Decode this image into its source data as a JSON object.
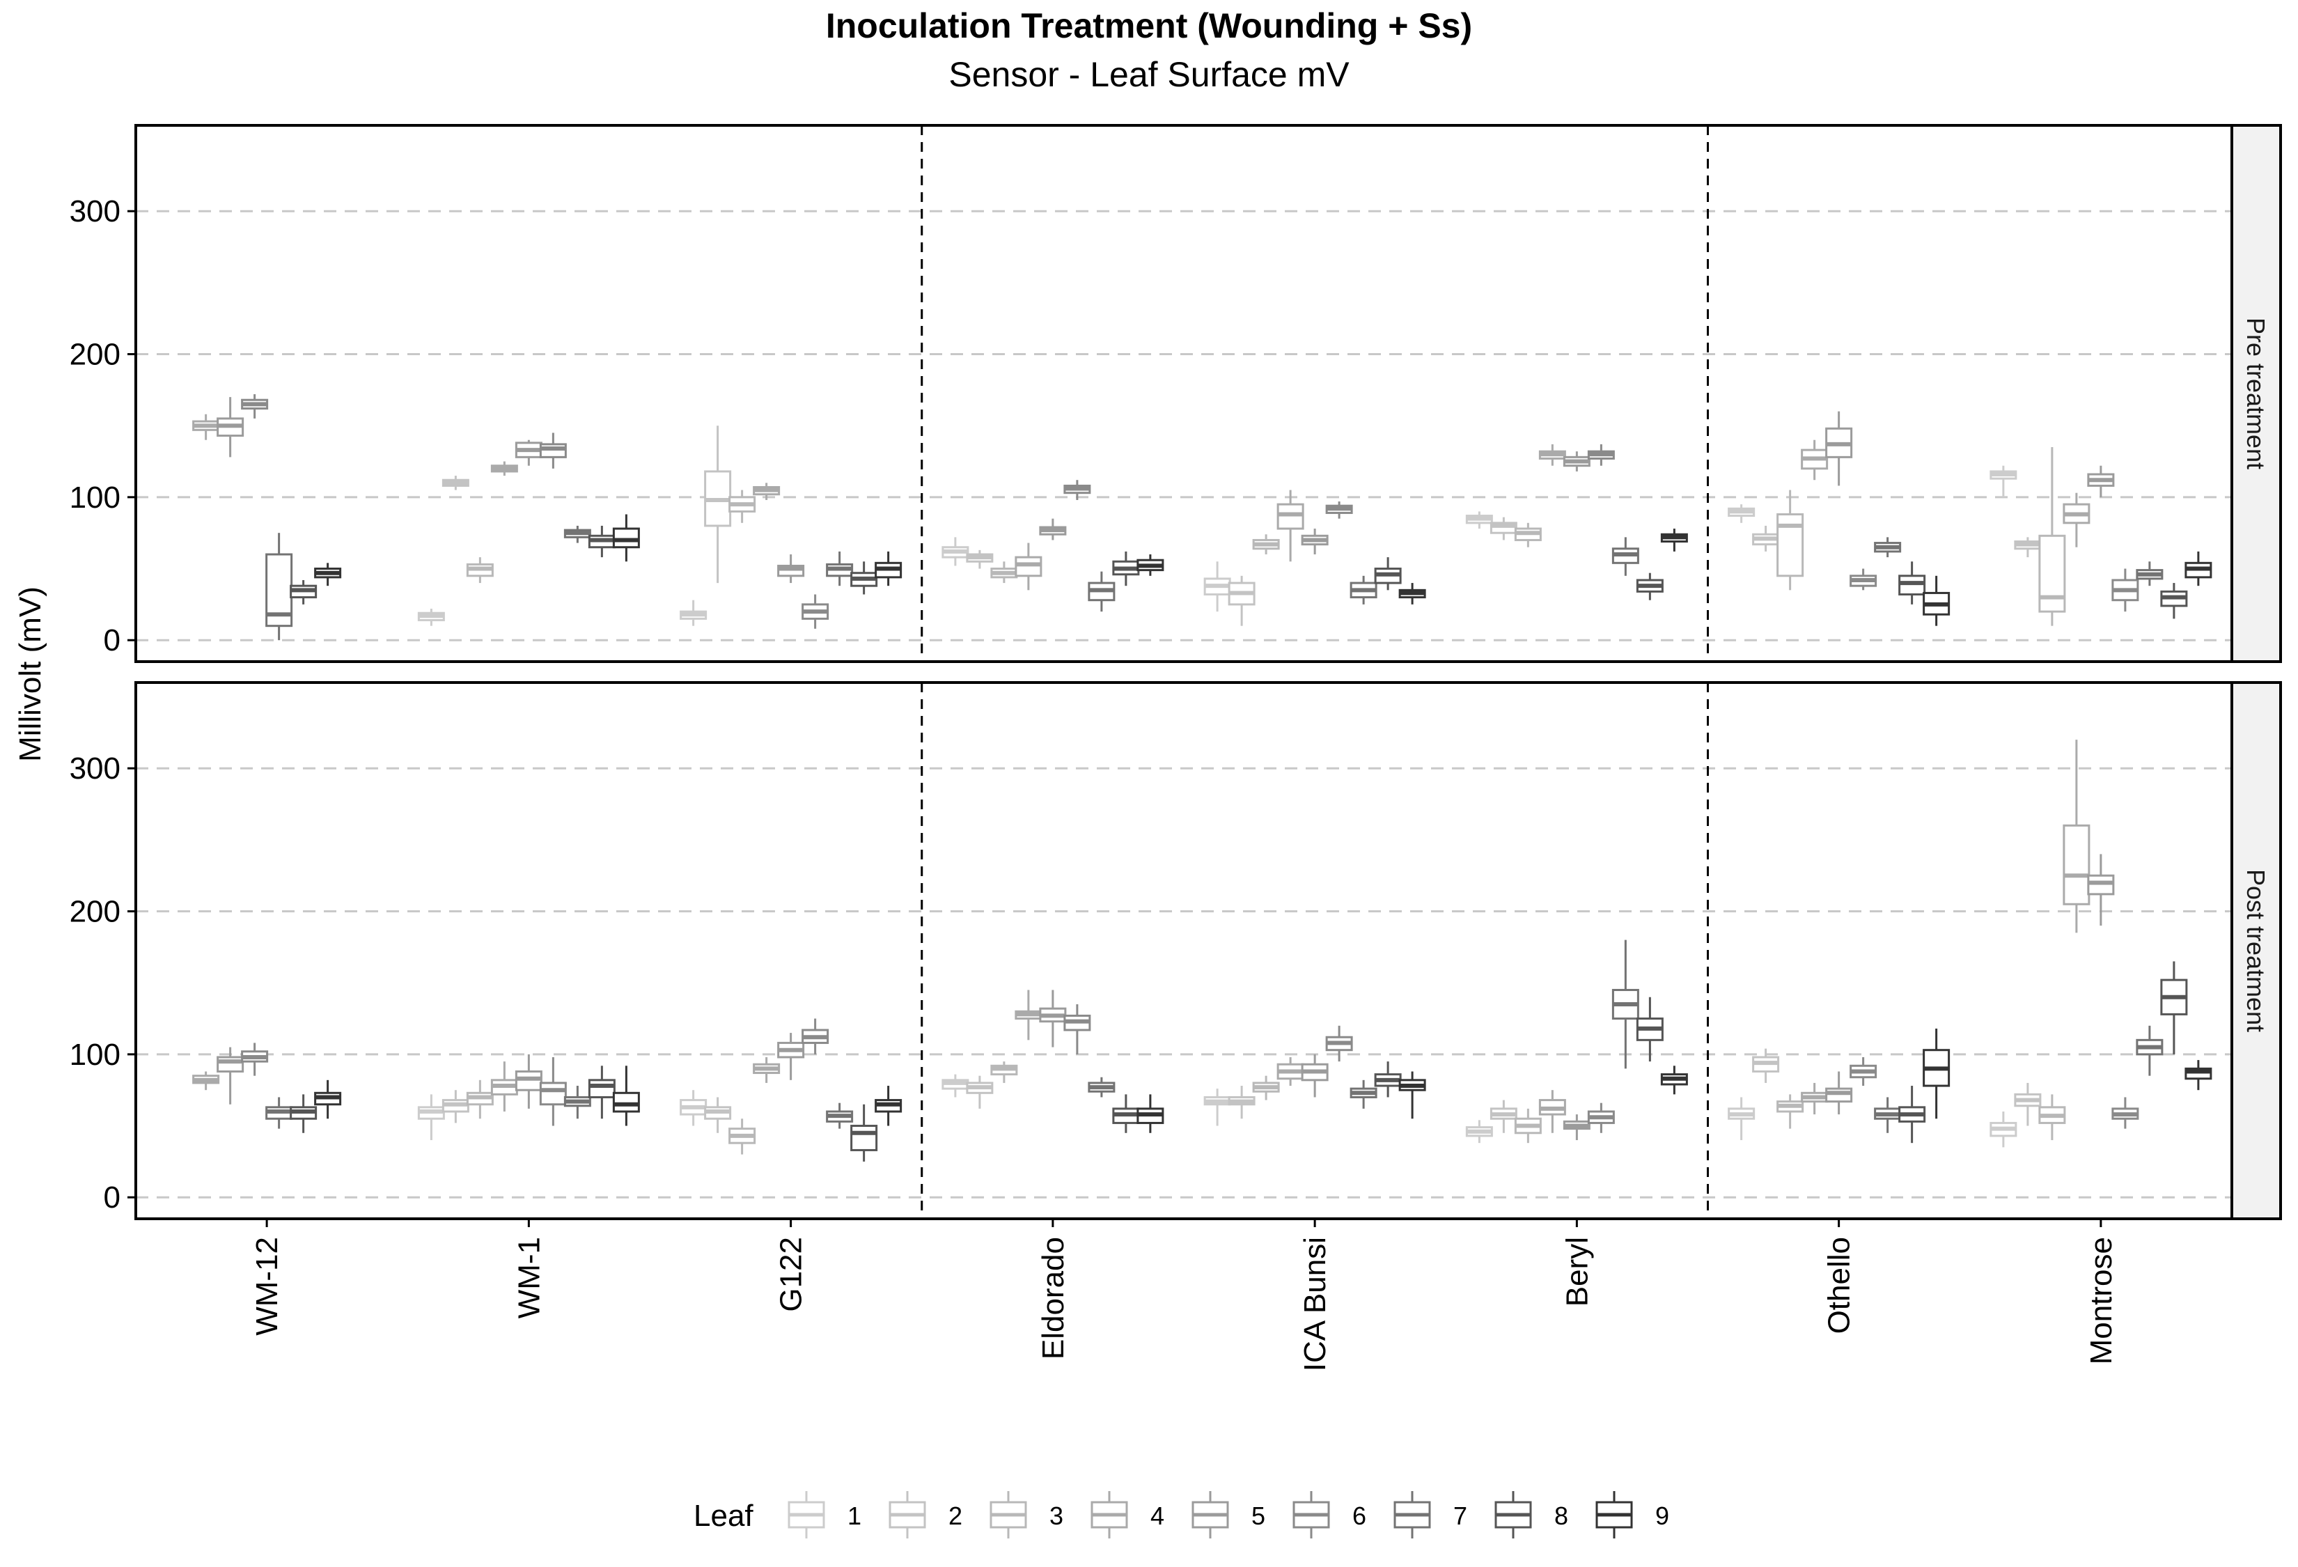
{
  "chart_data": {
    "type": "boxplot",
    "title": "Inoculation Treatment (Wounding + Ss)",
    "subtitle": "Sensor - Leaf Surface mV",
    "ylabel": "Millivolt (mV)",
    "xlabel": "",
    "ylim": [
      -15,
      360
    ],
    "yticks": [
      0,
      100,
      200,
      300
    ],
    "grid": "horizontal dashed",
    "legend": {
      "title": "Leaf",
      "position": "bottom",
      "items": [
        "1",
        "2",
        "3",
        "4",
        "5",
        "6",
        "7",
        "8",
        "9"
      ]
    },
    "leaf_colors": [
      "#cccccc",
      "#c3c3c3",
      "#b8b8b8",
      "#aaaaaa",
      "#9b9b9b",
      "#8a8a8a",
      "#737373",
      "#555555",
      "#333333"
    ],
    "categories": [
      "WM-12",
      "WM-1",
      "G122",
      "Eldorado",
      "ICA Bunsi",
      "Beryl",
      "Othello",
      "Montrose"
    ],
    "group_separators_after": [
      "G122",
      "Beryl"
    ],
    "facets": [
      {
        "label": "Pre treatment",
        "series": [
          [
            [
              140,
              147,
              150,
              153,
              158
            ],
            [
              128,
              143,
              150,
              155,
              170
            ],
            [
              155,
              162,
              165,
              168,
              172
            ],
            [
              0,
              10,
              18,
              60,
              75
            ],
            [
              25,
              30,
              35,
              38,
              42
            ],
            [
              38,
              44,
              47,
              50,
              54
            ]
          ],
          [
            [
              10,
              14,
              17,
              19,
              22
            ],
            [
              105,
              108,
              110,
              112,
              115
            ],
            [
              40,
              45,
              50,
              53,
              58
            ],
            [
              115,
              118,
              120,
              122,
              125
            ],
            [
              122,
              128,
              133,
              138,
              140
            ],
            [
              120,
              128,
              134,
              137,
              145
            ],
            [
              68,
              72,
              75,
              77,
              80
            ],
            [
              58,
              65,
              70,
              73,
              80
            ],
            [
              55,
              65,
              70,
              78,
              88
            ]
          ],
          [
            [
              10,
              15,
              18,
              20,
              28
            ],
            [
              40,
              80,
              98,
              118,
              150
            ],
            [
              82,
              90,
              95,
              100,
              105
            ],
            [
              98,
              102,
              105,
              107,
              110
            ],
            [
              40,
              45,
              50,
              52,
              60
            ],
            [
              8,
              15,
              20,
              25,
              32
            ],
            [
              38,
              45,
              50,
              53,
              62
            ],
            [
              32,
              38,
              43,
              47,
              55
            ],
            [
              38,
              44,
              50,
              54,
              62
            ]
          ],
          [
            [
              52,
              58,
              62,
              65,
              72
            ],
            [
              50,
              55,
              58,
              60,
              63
            ],
            [
              40,
              44,
              47,
              50,
              55
            ],
            [
              35,
              45,
              53,
              58,
              68
            ],
            [
              70,
              74,
              77,
              79,
              85
            ],
            [
              98,
              103,
              106,
              108,
              112
            ],
            [
              20,
              28,
              35,
              40,
              48
            ],
            [
              38,
              46,
              50,
              55,
              62
            ],
            [
              45,
              49,
              52,
              56,
              60
            ]
          ],
          [
            [
              20,
              32,
              38,
              43,
              55
            ],
            [
              10,
              25,
              33,
              40,
              45
            ],
            [
              60,
              64,
              67,
              70,
              74
            ],
            [
              55,
              78,
              88,
              95,
              105
            ],
            [
              60,
              67,
              70,
              73,
              78
            ],
            [
              85,
              89,
              92,
              94,
              97
            ],
            [
              25,
              30,
              35,
              40,
              45
            ],
            [
              35,
              40,
              46,
              50,
              58
            ],
            [
              25,
              30,
              33,
              35,
              40
            ]
          ],
          [
            [
              78,
              82,
              85,
              87,
              90
            ],
            [
              70,
              75,
              80,
              82,
              86
            ],
            [
              65,
              70,
              75,
              78,
              82
            ],
            [
              122,
              127,
              130,
              132,
              137
            ],
            [
              118,
              122,
              125,
              128,
              132
            ],
            [
              122,
              127,
              130,
              132,
              137
            ],
            [
              45,
              54,
              60,
              64,
              72
            ],
            [
              28,
              34,
              38,
              42,
              47
            ],
            [
              62,
              69,
              72,
              74,
              78
            ]
          ],
          [
            [
              82,
              87,
              90,
              92,
              95
            ],
            [
              62,
              67,
              71,
              74,
              80
            ],
            [
              35,
              45,
              80,
              88,
              105
            ],
            [
              112,
              120,
              127,
              133,
              140
            ],
            [
              108,
              128,
              137,
              148,
              160
            ],
            [
              35,
              38,
              42,
              45,
              50
            ],
            [
              58,
              62,
              65,
              68,
              72
            ],
            [
              25,
              32,
              40,
              45,
              55
            ],
            [
              10,
              18,
              25,
              33,
              45
            ]
          ],
          [
            [
              100,
              113,
              116,
              118,
              122
            ],
            [
              58,
              64,
              67,
              69,
              72
            ],
            [
              10,
              20,
              30,
              73,
              135
            ],
            [
              65,
              82,
              88,
              95,
              103
            ],
            [
              100,
              108,
              112,
              116,
              122
            ],
            [
              20,
              28,
              35,
              42,
              50
            ],
            [
              38,
              43,
              46,
              49,
              55
            ],
            [
              15,
              24,
              30,
              34,
              40
            ],
            [
              38,
              44,
              50,
              54,
              62
            ]
          ]
        ]
      },
      {
        "label": "Post treatment",
        "series": [
          [
            [
              75,
              80,
              82,
              85,
              88
            ],
            [
              65,
              88,
              95,
              98,
              105
            ],
            [
              85,
              95,
              98,
              102,
              108
            ],
            [
              48,
              55,
              60,
              63,
              70
            ],
            [
              45,
              55,
              60,
              63,
              72
            ],
            [
              55,
              65,
              70,
              73,
              82
            ]
          ],
          [
            [
              40,
              55,
              60,
              63,
              72
            ],
            [
              52,
              60,
              65,
              68,
              75
            ],
            [
              55,
              65,
              70,
              73,
              82
            ],
            [
              60,
              72,
              78,
              82,
              95
            ],
            [
              62,
              75,
              83,
              88,
              100
            ],
            [
              50,
              65,
              75,
              80,
              98
            ],
            [
              55,
              64,
              67,
              70,
              78
            ],
            [
              55,
              70,
              78,
              82,
              92
            ],
            [
              50,
              60,
              65,
              73,
              92
            ]
          ],
          [
            [
              50,
              58,
              63,
              68,
              75
            ],
            [
              45,
              55,
              60,
              63,
              70
            ],
            [
              30,
              38,
              43,
              48,
              55
            ],
            [
              80,
              87,
              90,
              93,
              98
            ],
            [
              82,
              98,
              103,
              108,
              115
            ],
            [
              100,
              108,
              112,
              117,
              125
            ],
            [
              48,
              53,
              57,
              60,
              66
            ],
            [
              25,
              33,
              45,
              50,
              65
            ],
            [
              50,
              60,
              65,
              68,
              78
            ]
          ],
          [
            [
              70,
              76,
              80,
              82,
              86
            ],
            [
              62,
              73,
              77,
              80,
              85
            ],
            [
              80,
              86,
              90,
              92,
              95
            ],
            [
              110,
              125,
              128,
              130,
              145
            ],
            [
              105,
              123,
              127,
              132,
              145
            ],
            [
              100,
              117,
              123,
              127,
              135
            ],
            [
              70,
              74,
              77,
              80,
              84
            ],
            [
              45,
              52,
              58,
              62,
              72
            ],
            [
              45,
              52,
              58,
              62,
              72
            ]
          ],
          [
            [
              50,
              65,
              67,
              70,
              76
            ],
            [
              55,
              65,
              67,
              70,
              78
            ],
            [
              68,
              74,
              77,
              80,
              85
            ],
            [
              78,
              83,
              88,
              93,
              98
            ],
            [
              70,
              82,
              88,
              93,
              100
            ],
            [
              95,
              103,
              108,
              112,
              120
            ],
            [
              62,
              70,
              73,
              76,
              82
            ],
            [
              70,
              78,
              82,
              86,
              95
            ],
            [
              55,
              75,
              78,
              82,
              88
            ]
          ],
          [
            [
              38,
              43,
              46,
              49,
              54
            ],
            [
              45,
              55,
              58,
              62,
              68
            ],
            [
              38,
              45,
              50,
              55,
              62
            ],
            [
              45,
              58,
              62,
              68,
              75
            ],
            [
              40,
              48,
              50,
              53,
              58
            ],
            [
              45,
              52,
              56,
              60,
              66
            ],
            [
              90,
              125,
              135,
              145,
              180
            ],
            [
              95,
              110,
              118,
              125,
              140
            ],
            [
              72,
              79,
              83,
              86,
              92
            ]
          ],
          [
            [
              40,
              55,
              58,
              62,
              70
            ],
            [
              80,
              88,
              94,
              98,
              104
            ],
            [
              48,
              60,
              64,
              67,
              72
            ],
            [
              58,
              67,
              70,
              73,
              80
            ],
            [
              58,
              67,
              73,
              76,
              88
            ],
            [
              78,
              84,
              88,
              92,
              98
            ],
            [
              45,
              55,
              58,
              62,
              70
            ],
            [
              38,
              53,
              58,
              63,
              78
            ],
            [
              55,
              78,
              90,
              103,
              118
            ]
          ],
          [
            [
              35,
              43,
              48,
              52,
              60
            ],
            [
              50,
              64,
              68,
              72,
              80
            ],
            [
              40,
              52,
              57,
              63,
              72
            ],
            [
              185,
              205,
              225,
              260,
              320
            ],
            [
              190,
              212,
              220,
              225,
              240
            ],
            [
              48,
              55,
              58,
              62,
              70
            ],
            [
              85,
              100,
              105,
              110,
              120
            ],
            [
              100,
              128,
              140,
              152,
              165
            ],
            [
              75,
              83,
              88,
              90,
              96
            ]
          ]
        ]
      }
    ]
  }
}
